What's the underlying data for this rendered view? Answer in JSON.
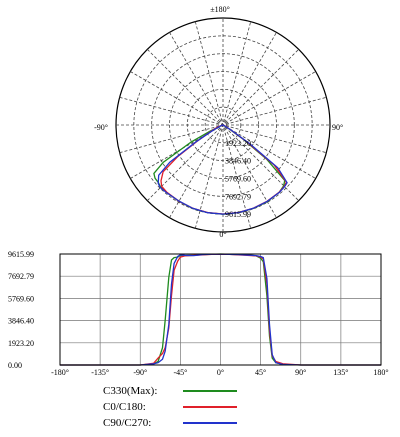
{
  "chart_data": [
    {
      "type": "polar",
      "angle_labels": {
        "top": "±180°",
        "left": "-90°",
        "right": "90°",
        "bottom": "0°"
      },
      "radial_tick_labels": [
        "1923.20",
        "3846.40",
        "5769.60",
        "7692.79",
        "9615.99"
      ],
      "r_max": 9615.99,
      "colors": {
        "C330": "#1e8b1e",
        "C0": "#e0202a",
        "C90": "#2233cc"
      },
      "series": [
        {
          "name": "C330(Max):",
          "key": "C330",
          "angles": [
            -75,
            -70,
            -65,
            -62,
            -58,
            -55,
            -52,
            -48,
            -45,
            -40,
            -30,
            -20,
            -10,
            0,
            10,
            20,
            30,
            40,
            45,
            48,
            52,
            55,
            58,
            62,
            70
          ],
          "values": [
            100,
            300,
            1500,
            3900,
            7600,
            9100,
            9300,
            9350,
            9500,
            9480,
            9500,
            9570,
            9590,
            9615,
            9590,
            9570,
            9550,
            9450,
            9250,
            8950,
            6000,
            2500,
            600,
            200,
            50
          ]
        },
        {
          "name": "C0/C180:",
          "key": "C0",
          "angles": [
            -75,
            -70,
            -65,
            -62,
            -58,
            -55,
            -52,
            -48,
            -45,
            -40,
            -30,
            -20,
            -10,
            0,
            10,
            20,
            30,
            40,
            45,
            48,
            52,
            55,
            58,
            62,
            70
          ],
          "values": [
            150,
            600,
            1000,
            1500,
            3200,
            6000,
            8200,
            9000,
            9350,
            9450,
            9500,
            9550,
            9580,
            9600,
            9580,
            9550,
            9500,
            9450,
            9350,
            9200,
            7000,
            3000,
            800,
            300,
            100
          ]
        },
        {
          "name": "C90/C270:",
          "key": "C90",
          "angles": [
            -75,
            -70,
            -65,
            -62,
            -58,
            -55,
            -52,
            -48,
            -45,
            -40,
            -30,
            -20,
            -10,
            0,
            10,
            20,
            30,
            40,
            45,
            48,
            52,
            55,
            58,
            62,
            70
          ],
          "values": [
            100,
            200,
            500,
            1200,
            3500,
            7000,
            8800,
            9400,
            9550,
            9500,
            9480,
            9560,
            9600,
            9610,
            9590,
            9560,
            9520,
            9480,
            9400,
            9300,
            7500,
            3500,
            900,
            200,
            50
          ]
        }
      ]
    },
    {
      "type": "line",
      "x_ticks": [
        "-180°",
        "-135°",
        "-90°",
        "-45°",
        "0°",
        "45°",
        "90°",
        "135°",
        "180°"
      ],
      "y_ticks": [
        "0.00",
        "1923.20",
        "3846.40",
        "5769.60",
        "7692.79",
        "9615.99"
      ],
      "xlim": [
        -180,
        180
      ],
      "ylim": [
        0,
        9615.99
      ],
      "grid": true,
      "legend_placement": "below",
      "series": [
        {
          "name": "C330(Max):",
          "key": "C330",
          "x": [
            -180,
            -90,
            -75,
            -70,
            -65,
            -62,
            -58,
            -55,
            -52,
            -48,
            -45,
            -40,
            -30,
            -20,
            -10,
            0,
            10,
            20,
            30,
            40,
            45,
            48,
            52,
            55,
            58,
            62,
            70,
            90,
            180
          ],
          "y": [
            0,
            0,
            100,
            300,
            1500,
            3900,
            7600,
            9100,
            9300,
            9350,
            9500,
            9480,
            9500,
            9570,
            9590,
            9615,
            9590,
            9570,
            9550,
            9450,
            9250,
            8950,
            6000,
            2500,
            600,
            200,
            50,
            0,
            0
          ]
        },
        {
          "name": "C0/C180:",
          "key": "C0",
          "x": [
            -180,
            -90,
            -75,
            -70,
            -65,
            -62,
            -58,
            -55,
            -52,
            -48,
            -45,
            -40,
            -30,
            -20,
            -10,
            0,
            10,
            20,
            30,
            40,
            45,
            48,
            52,
            55,
            58,
            62,
            70,
            90,
            180
          ],
          "y": [
            0,
            0,
            150,
            600,
            1000,
            1500,
            3200,
            6000,
            8200,
            9000,
            9350,
            9450,
            9500,
            9550,
            9580,
            9600,
            9580,
            9550,
            9500,
            9450,
            9350,
            9200,
            7000,
            3000,
            800,
            300,
            100,
            0,
            0
          ]
        },
        {
          "name": "C90/C270:",
          "key": "C90",
          "x": [
            -180,
            -90,
            -75,
            -70,
            -65,
            -62,
            -58,
            -55,
            -52,
            -48,
            -45,
            -40,
            -30,
            -20,
            -10,
            0,
            10,
            20,
            30,
            40,
            45,
            48,
            52,
            55,
            58,
            62,
            70,
            90,
            180
          ],
          "y": [
            0,
            0,
            100,
            200,
            500,
            1200,
            3500,
            7000,
            8800,
            9400,
            9550,
            9500,
            9480,
            9560,
            9600,
            9610,
            9590,
            9560,
            9520,
            9480,
            9400,
            9300,
            7500,
            3500,
            900,
            200,
            50,
            0,
            0
          ]
        }
      ]
    }
  ],
  "legend": {
    "title": "",
    "items": [
      {
        "label": "C330(Max):",
        "key": "C330"
      },
      {
        "label": "C0/C180:",
        "key": "C0"
      },
      {
        "label": "C90/C270:",
        "key": "C90"
      }
    ]
  }
}
